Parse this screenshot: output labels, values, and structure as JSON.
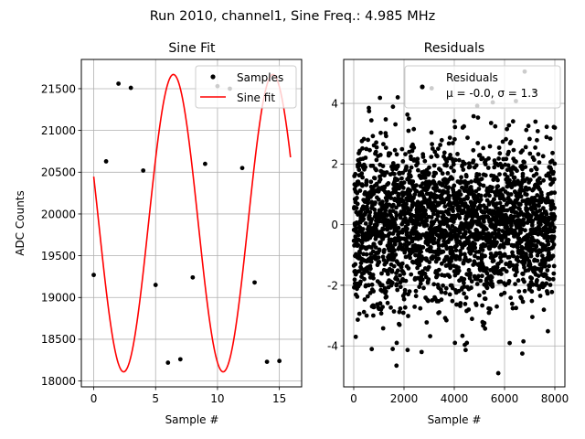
{
  "figure": {
    "suptitle": "Run 2010, channel1, Sine Freq.: 4.985 MHz"
  },
  "chart_data": [
    {
      "type": "line",
      "title": "Sine Fit",
      "xlabel": "Sample #",
      "ylabel": "ADC Counts",
      "xlim": [
        -1,
        16.8
      ],
      "ylim": [
        17930,
        21850
      ],
      "xticks": [
        0,
        5,
        10,
        15
      ],
      "yticks": [
        18000,
        18500,
        19000,
        19500,
        20000,
        20500,
        21000,
        21500
      ],
      "grid": true,
      "legend_position": "top-right",
      "fit": {
        "amplitude": 1780,
        "offset": 19890,
        "period": 8.04,
        "phase_rad": -3.46,
        "x_range": [
          0,
          15.9
        ],
        "color": "#ff0000"
      },
      "series": [
        {
          "name": "Samples",
          "style": "points",
          "color": "#000000",
          "x": [
            0,
            1,
            2,
            3,
            4,
            5,
            6,
            7,
            8,
            9,
            10,
            11,
            12,
            13,
            14,
            15
          ],
          "y": [
            19270,
            20630,
            21560,
            21510,
            20520,
            19150,
            18220,
            18260,
            19240,
            20600,
            21530,
            21500,
            20550,
            19180,
            18230,
            18240
          ]
        },
        {
          "name": "Sine fit",
          "style": "line",
          "color": "#ff0000"
        }
      ]
    },
    {
      "type": "scatter",
      "title": "Residuals",
      "xlabel": "Sample #",
      "xlim": [
        -400,
        8400
      ],
      "ylim": [
        -5.35,
        5.45
      ],
      "xticks": [
        0,
        2000,
        4000,
        6000,
        8000
      ],
      "yticks": [
        -4,
        -2,
        0,
        2,
        4
      ],
      "grid": true,
      "legend_position": "top-right",
      "n_points": 8000,
      "mean": -0.0,
      "sigma": 1.3,
      "outliers": [
        {
          "x": 6800,
          "y": 5.05
        },
        {
          "x": 5750,
          "y": -4.9
        },
        {
          "x": 1700,
          "y": -4.65
        },
        {
          "x": 1750,
          "y": 4.2
        },
        {
          "x": 600,
          "y": 3.85
        },
        {
          "x": 2700,
          "y": -4.2
        },
        {
          "x": 4500,
          "y": -3.9
        },
        {
          "x": 1550,
          "y": -4.1
        },
        {
          "x": 6750,
          "y": -3.85
        },
        {
          "x": 80,
          "y": -3.7
        },
        {
          "x": 3100,
          "y": 4.5
        },
        {
          "x": 7200,
          "y": 4.4
        }
      ],
      "series": [
        {
          "name": "Residuals",
          "style": "points",
          "color": "#000000"
        }
      ],
      "legend_stats_label": "μ = -0.0, σ = 1.3"
    }
  ]
}
